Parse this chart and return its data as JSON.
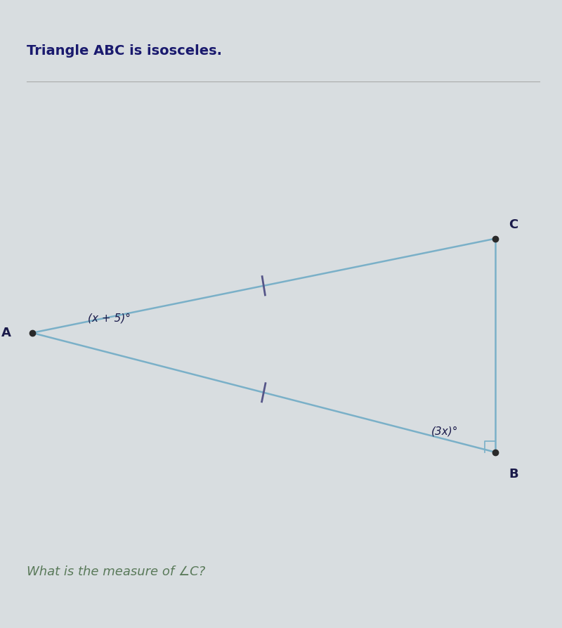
{
  "title": "Triangle ABC is isosceles.",
  "question": "What is the measure of ∠C?",
  "title_fontsize": 14,
  "question_fontsize": 13,
  "title_color": "#1a1a6e",
  "question_color": "#5a7a5a",
  "bg_color": "#d8dde0",
  "triangle": {
    "A": [
      0.05,
      0.47
    ],
    "B": [
      0.88,
      0.28
    ],
    "C": [
      0.88,
      0.62
    ]
  },
  "line_color": "#7ab0c8",
  "line_width": 1.8,
  "point_color": "#2a2a2a",
  "point_size": 6,
  "label_A": "A",
  "label_B": "B",
  "label_C": "C",
  "angle_A_label": "(x + 5)°",
  "angle_B_label": "(3x)°",
  "tick_color": "#555588",
  "divider_color": "#aaaaaa",
  "divider_linewidth": 0.8
}
